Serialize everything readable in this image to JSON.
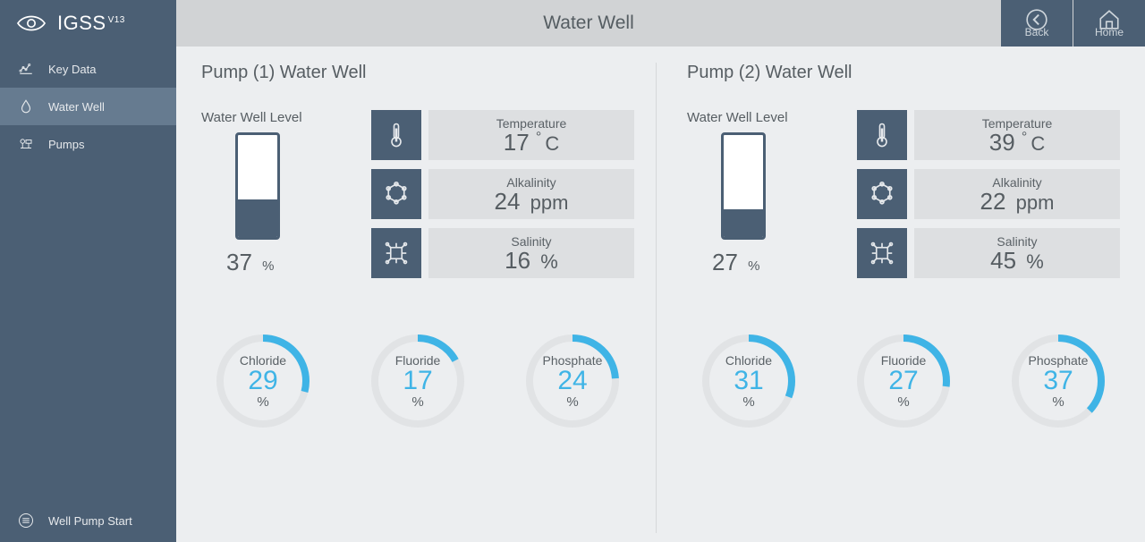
{
  "app": {
    "name": "IGSS",
    "version": "V13"
  },
  "page_title": "Water Well",
  "header_buttons": {
    "back": "Back",
    "home": "Home"
  },
  "colors": {
    "sidebar": "#4b5f74",
    "sidebar_active": "#667b90",
    "header_bg": "#d1d3d5",
    "main_bg": "#eceef0",
    "metric_box": "#dddfe1",
    "text": "#565d62",
    "accent": "#3fb4e6",
    "gauge_track": "#e1e3e5"
  },
  "sidebar": {
    "items": [
      {
        "label": "Key Data",
        "icon": "chart-line-icon",
        "active": false
      },
      {
        "label": "Water Well",
        "icon": "drop-icon",
        "active": true
      },
      {
        "label": "Pumps",
        "icon": "pumps-icon",
        "active": false
      }
    ],
    "bottom": {
      "label": "Well Pump Start",
      "icon": "menu-icon"
    }
  },
  "pumps": [
    {
      "title": "Pump (1) Water Well",
      "well": {
        "label": "Water Well Level",
        "percent": 37
      },
      "metrics": [
        {
          "name": "Temperature",
          "value": 17,
          "unit": "°C",
          "icon": "thermometer-icon"
        },
        {
          "name": "Alkalinity",
          "value": 24,
          "unit": "ppm",
          "icon": "molecule-icon"
        },
        {
          "name": "Salinity",
          "value": 16,
          "unit": "%",
          "icon": "crystal-icon"
        }
      ],
      "gauges": [
        {
          "name": "Chloride",
          "value": 29
        },
        {
          "name": "Fluoride",
          "value": 17
        },
        {
          "name": "Phosphate",
          "value": 24
        }
      ]
    },
    {
      "title": "Pump (2) Water Well",
      "well": {
        "label": "Water Well Level",
        "percent": 27
      },
      "metrics": [
        {
          "name": "Temperature",
          "value": 39,
          "unit": "°C",
          "icon": "thermometer-icon"
        },
        {
          "name": "Alkalinity",
          "value": 22,
          "unit": "ppm",
          "icon": "molecule-icon"
        },
        {
          "name": "Salinity",
          "value": 45,
          "unit": "%",
          "icon": "crystal-icon"
        }
      ],
      "gauges": [
        {
          "name": "Chloride",
          "value": 31
        },
        {
          "name": "Fluoride",
          "value": 27
        },
        {
          "name": "Phosphate",
          "value": 37
        }
      ]
    }
  ]
}
